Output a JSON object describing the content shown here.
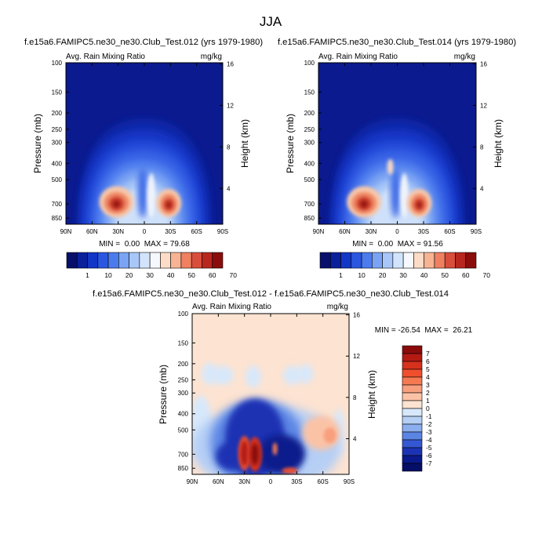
{
  "page_title": "JJA",
  "chart_data": [
    {
      "type": "heatmap",
      "id": "panel1",
      "title": "f.e15a6.FAMIPC5.ne30_ne30.Club_Test.012 (yrs 1979-1980)",
      "left_label": "Avg. Rain Mixing Ratio",
      "right_label": "mg/kg",
      "ylabel": "Pressure (mb)",
      "ylabel_right": "Height (km)",
      "xticks": [
        "90N",
        "60N",
        "30N",
        "0",
        "30S",
        "60S",
        "90S"
      ],
      "yticks": [
        "100",
        "150",
        "200",
        "250",
        "300",
        "400",
        "500",
        "700",
        "850"
      ],
      "ytick_values": [
        100,
        150,
        200,
        250,
        300,
        400,
        500,
        700,
        850
      ],
      "height_ticks": [
        "16",
        "12",
        "8",
        "4"
      ],
      "height_values": [
        16,
        12,
        8,
        4
      ],
      "xlim": [
        90,
        -90
      ],
      "ylim": [
        100,
        925
      ],
      "stats": "MIN =  0.00  MAX = 79.68",
      "min": 0.0,
      "max": 79.68
    },
    {
      "type": "heatmap",
      "id": "panel2",
      "title": "f.e15a6.FAMIPC5.ne30_ne30.Club_Test.014 (yrs 1979-1980)",
      "left_label": "Avg. Rain Mixing Ratio",
      "right_label": "mg/kg",
      "ylabel": "Pressure (mb)",
      "ylabel_right": "Height (km)",
      "xticks": [
        "90N",
        "60N",
        "30N",
        "0",
        "30S",
        "60S",
        "90S"
      ],
      "yticks": [
        "100",
        "150",
        "200",
        "250",
        "300",
        "400",
        "500",
        "700",
        "850"
      ],
      "ytick_values": [
        100,
        150,
        200,
        250,
        300,
        400,
        500,
        700,
        850
      ],
      "height_ticks": [
        "16",
        "12",
        "8",
        "4"
      ],
      "height_values": [
        16,
        12,
        8,
        4
      ],
      "xlim": [
        90,
        -90
      ],
      "ylim": [
        100,
        925
      ],
      "stats": "MIN =  0.00  MAX = 91.56",
      "min": 0.0,
      "max": 91.56
    },
    {
      "type": "heatmap",
      "id": "panel3",
      "title": "f.e15a6.FAMIPC5.ne30_ne30.Club_Test.012 - f.e15a6.FAMIPC5.ne30_ne30.Club_Test.014",
      "left_label": "Avg. Rain Mixing Ratio",
      "right_label": "mg/kg",
      "ylabel": "Pressure (mb)",
      "ylabel_right": "Height (km)",
      "xticks": [
        "90N",
        "60N",
        "30N",
        "0",
        "30S",
        "60S",
        "90S"
      ],
      "yticks": [
        "100",
        "150",
        "200",
        "250",
        "300",
        "400",
        "500",
        "700",
        "850"
      ],
      "ytick_values": [
        100,
        150,
        200,
        250,
        300,
        400,
        500,
        700,
        850
      ],
      "height_ticks": [
        "16",
        "12",
        "8",
        "4"
      ],
      "height_values": [
        16,
        12,
        8,
        4
      ],
      "xlim": [
        90,
        -90
      ],
      "ylim": [
        100,
        925
      ],
      "stats": "MIN = -26.54  MAX =  26.21",
      "min": -26.54,
      "max": 26.21
    }
  ],
  "colorbar_abs": {
    "labels": [
      "1",
      "10",
      "20",
      "30",
      "40",
      "50",
      "60",
      "70"
    ],
    "colors": [
      "#08106b",
      "#0b209b",
      "#1236c6",
      "#2b57e0",
      "#4c7bee",
      "#7aa3f4",
      "#a8c7f8",
      "#d2e4fb",
      "#f5f8fd",
      "#fcdcc7",
      "#f7b393",
      "#ef8060",
      "#d94e3a",
      "#b7271e",
      "#8a0d0b"
    ]
  },
  "colorbar_diff": {
    "labels": [
      "7",
      "6",
      "5",
      "4",
      "3",
      "2",
      "1",
      "0",
      "-1",
      "-2",
      "-3",
      "-4",
      "-5",
      "-6",
      "-7"
    ],
    "colors": [
      "#8b0b0b",
      "#b41a12",
      "#d6311d",
      "#ef4f2d",
      "#f57a52",
      "#f89f7d",
      "#fbc3a6",
      "#fde3d1",
      "#d7e8fb",
      "#b5cff5",
      "#8aaeee",
      "#5b85e4",
      "#3458d3",
      "#1b33b3",
      "#0a1a8c",
      "#050f66"
    ]
  }
}
